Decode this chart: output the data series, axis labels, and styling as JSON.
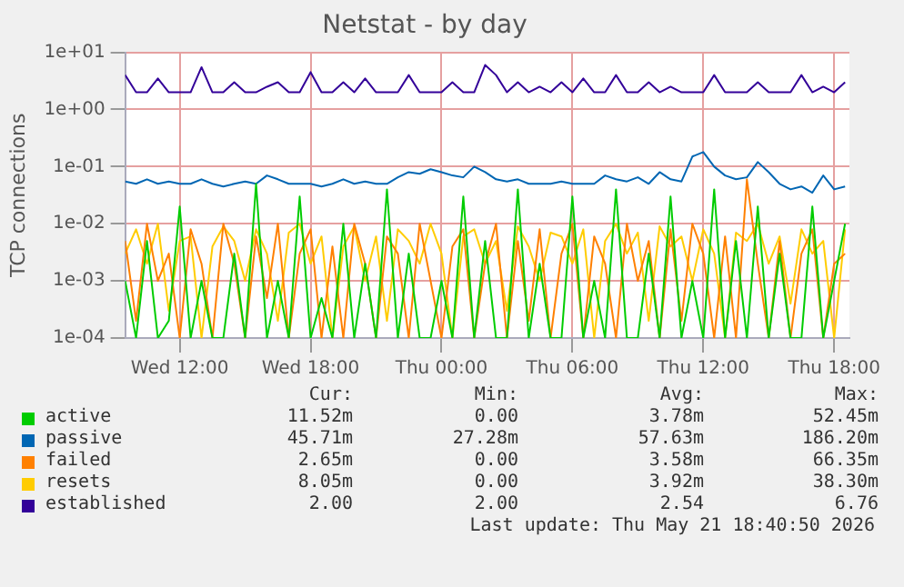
{
  "chart_data": {
    "type": "line",
    "title": "Netstat - by day",
    "ylabel": "TCP connections",
    "x": [
      "2026-05-20T09:30",
      "2026-05-20T10:00",
      "2026-05-20T10:30",
      "2026-05-20T11:00",
      "2026-05-20T11:30",
      "2026-05-20T12:00",
      "2026-05-20T12:30",
      "2026-05-20T13:00",
      "2026-05-20T13:30",
      "2026-05-20T14:00",
      "2026-05-20T14:30",
      "2026-05-20T15:00",
      "2026-05-20T15:30",
      "2026-05-20T16:00",
      "2026-05-20T16:30",
      "2026-05-20T17:00",
      "2026-05-20T17:30",
      "2026-05-20T18:00",
      "2026-05-20T18:30",
      "2026-05-20T19:00",
      "2026-05-20T19:30",
      "2026-05-20T20:00",
      "2026-05-20T20:30",
      "2026-05-20T21:00",
      "2026-05-20T21:30",
      "2026-05-20T22:00",
      "2026-05-20T22:30",
      "2026-05-20T23:00",
      "2026-05-20T23:30",
      "2026-05-21T00:00",
      "2026-05-21T00:30",
      "2026-05-21T01:00",
      "2026-05-21T01:30",
      "2026-05-21T02:00",
      "2026-05-21T02:30",
      "2026-05-21T03:00",
      "2026-05-21T03:30",
      "2026-05-21T04:00",
      "2026-05-21T04:30",
      "2026-05-21T05:00",
      "2026-05-21T05:30",
      "2026-05-21T06:00",
      "2026-05-21T06:30",
      "2026-05-21T07:00",
      "2026-05-21T07:30",
      "2026-05-21T08:00",
      "2026-05-21T08:30",
      "2026-05-21T09:00",
      "2026-05-21T09:30",
      "2026-05-21T10:00",
      "2026-05-21T10:30",
      "2026-05-21T11:00",
      "2026-05-21T11:30",
      "2026-05-21T12:00",
      "2026-05-21T12:30",
      "2026-05-21T13:00",
      "2026-05-21T13:30",
      "2026-05-21T14:00",
      "2026-05-21T14:30",
      "2026-05-21T15:00",
      "2026-05-21T15:30",
      "2026-05-21T16:00",
      "2026-05-21T16:30",
      "2026-05-21T17:00",
      "2026-05-21T17:30",
      "2026-05-21T18:00",
      "2026-05-21T18:30"
    ],
    "series": [
      {
        "name": "active",
        "color": "#00cc00",
        "values": [
          0.001,
          0.0001,
          0.005,
          0.0001,
          0.0002,
          0.02,
          0.0001,
          0.001,
          0.0001,
          0.0001,
          0.003,
          0.0001,
          0.05,
          0.0001,
          0.001,
          0.0001,
          0.03,
          0.0001,
          0.0005,
          0.0001,
          0.01,
          0.0001,
          0.002,
          0.0001,
          0.04,
          0.0001,
          0.003,
          0.0001,
          0.0001,
          0.001,
          0.0001,
          0.03,
          0.0001,
          0.005,
          0.0001,
          0.0001,
          0.04,
          0.0001,
          0.002,
          0.0001,
          0.0001,
          0.03,
          0.0001,
          0.001,
          0.0001,
          0.04,
          0.0001,
          0.0001,
          0.003,
          0.0001,
          0.03,
          0.0001,
          0.001,
          0.0001,
          0.04,
          0.0001,
          0.005,
          0.0001,
          0.02,
          0.0001,
          0.003,
          0.0001,
          0.0001,
          0.02,
          0.0001,
          0.001,
          0.01
        ]
      },
      {
        "name": "passive",
        "color": "#0066b3",
        "values": [
          0.055,
          0.05,
          0.06,
          0.05,
          0.055,
          0.05,
          0.05,
          0.06,
          0.05,
          0.045,
          0.05,
          0.055,
          0.05,
          0.07,
          0.06,
          0.05,
          0.05,
          0.05,
          0.045,
          0.05,
          0.06,
          0.05,
          0.055,
          0.05,
          0.05,
          0.065,
          0.08,
          0.075,
          0.09,
          0.08,
          0.07,
          0.065,
          0.1,
          0.08,
          0.06,
          0.055,
          0.06,
          0.05,
          0.05,
          0.05,
          0.055,
          0.05,
          0.05,
          0.05,
          0.07,
          0.06,
          0.055,
          0.065,
          0.05,
          0.08,
          0.06,
          0.055,
          0.15,
          0.18,
          0.1,
          0.07,
          0.06,
          0.065,
          0.12,
          0.08,
          0.05,
          0.04,
          0.045,
          0.035,
          0.07,
          0.04,
          0.045
        ]
      },
      {
        "name": "failed",
        "color": "#ff8000",
        "values": [
          0.005,
          0.0002,
          0.01,
          0.001,
          0.003,
          0.0001,
          0.008,
          0.002,
          0.0001,
          0.01,
          0.002,
          0.0001,
          0.006,
          0.0005,
          0.01,
          0.0001,
          0.003,
          0.008,
          0.0001,
          0.004,
          0.0001,
          0.01,
          0.002,
          0.0001,
          0.006,
          0.003,
          0.0001,
          0.01,
          0.001,
          0.0001,
          0.004,
          0.008,
          0.0001,
          0.002,
          0.01,
          0.0001,
          0.005,
          0.0002,
          0.008,
          0.0001,
          0.003,
          0.01,
          0.0001,
          0.006,
          0.002,
          0.0001,
          0.01,
          0.001,
          0.005,
          0.0001,
          0.008,
          0.0002,
          0.01,
          0.003,
          0.0001,
          0.006,
          0.0001,
          0.06,
          0.002,
          0.0001,
          0.005,
          0.0001,
          0.003,
          0.008,
          0.0001,
          0.002,
          0.003
        ]
      },
      {
        "name": "resets",
        "color": "#ffcc00",
        "values": [
          0.003,
          0.008,
          0.002,
          0.01,
          0.0003,
          0.005,
          0.006,
          0.0001,
          0.004,
          0.009,
          0.005,
          0.001,
          0.008,
          0.003,
          0.0002,
          0.007,
          0.01,
          0.002,
          0.006,
          0.0001,
          0.004,
          0.009,
          0.001,
          0.006,
          0.0002,
          0.008,
          0.005,
          0.002,
          0.01,
          0.003,
          0.0001,
          0.006,
          0.008,
          0.002,
          0.005,
          0.0003,
          0.009,
          0.004,
          0.001,
          0.007,
          0.006,
          0.002,
          0.008,
          0.0001,
          0.005,
          0.01,
          0.003,
          0.007,
          0.0002,
          0.009,
          0.004,
          0.006,
          0.001,
          0.008,
          0.003,
          0.0001,
          0.007,
          0.005,
          0.01,
          0.002,
          0.006,
          0.0004,
          0.008,
          0.003,
          0.005,
          0.0001,
          0.008
        ]
      },
      {
        "name": "established",
        "color": "#330099",
        "values": [
          4,
          2,
          2,
          3.5,
          2,
          2,
          2,
          5.5,
          2,
          2,
          3,
          2,
          2,
          2.5,
          3,
          2,
          2,
          4.5,
          2,
          2,
          3,
          2,
          3.5,
          2,
          2,
          2,
          4,
          2,
          2,
          2,
          3,
          2,
          2,
          6,
          4,
          2,
          3,
          2,
          2.5,
          2,
          3,
          2,
          3.5,
          2,
          2,
          4,
          2,
          2,
          3,
          2,
          2.5,
          2,
          2,
          2,
          4,
          2,
          2,
          2,
          3,
          2,
          2,
          2,
          4,
          2,
          2.5,
          2,
          3
        ]
      }
    ],
    "xlim": [
      "2026-05-20T09:30",
      "2026-05-21T18:42"
    ],
    "xticks": [
      {
        "value": "2026-05-20T12:00",
        "label": "Wed 12:00"
      },
      {
        "value": "2026-05-20T18:00",
        "label": "Wed 18:00"
      },
      {
        "value": "2026-05-21T00:00",
        "label": "Thu 00:00"
      },
      {
        "value": "2026-05-21T06:00",
        "label": "Thu 06:00"
      },
      {
        "value": "2026-05-21T12:00",
        "label": "Thu 12:00"
      },
      {
        "value": "2026-05-21T18:00",
        "label": "Thu 18:00"
      }
    ],
    "ylim": [
      0.0001,
      10
    ],
    "yticks": [
      {
        "value": 0.0001,
        "label": "1e-04"
      },
      {
        "value": 0.001,
        "label": "1e-03"
      },
      {
        "value": 0.01,
        "label": "1e-02"
      },
      {
        "value": 0.1,
        "label": "1e-01"
      },
      {
        "value": 1,
        "label": "1e+00"
      },
      {
        "value": 10,
        "label": "1e+01"
      }
    ],
    "log": "y",
    "grid": true,
    "legend": "bottom",
    "marker": "none",
    "line_style": "solid",
    "annotations": [
      "Cur:",
      "Min:",
      "Avg:",
      "Max:",
      "11.52m",
      "0.00",
      "3.78m",
      "52.45m",
      "45.71m",
      "27.28m",
      "57.63m",
      "186.20m",
      "2.65m",
      "0.00",
      "3.58m",
      "66.35m",
      "8.05m",
      "0.00",
      "3.92m",
      "38.30m",
      "2.00",
      "2.00",
      "2.54",
      "6.76",
      "Last update: Thu May 21 18:40:50 2026"
    ]
  }
}
